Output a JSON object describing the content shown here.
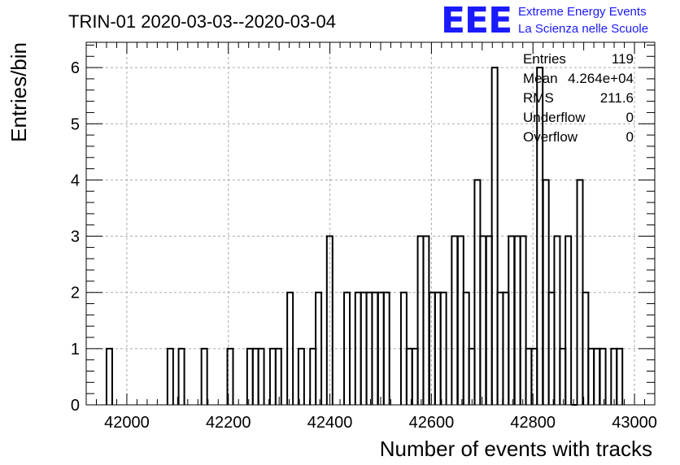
{
  "chart_data": {
    "type": "bar",
    "title": "TRIN-01 2020-03-03--2020-03-04",
    "xlabel": "Number of events with tracks",
    "ylabel": "Entries/bin",
    "xlim": [
      41920,
      43040
    ],
    "ylim": [
      0,
      6.45
    ],
    "grid": true,
    "bin_width": 11.2,
    "bins": [
      [
        41960,
        1
      ],
      [
        42080,
        1
      ],
      [
        42102,
        1
      ],
      [
        42147,
        1
      ],
      [
        42198,
        1
      ],
      [
        42237,
        1
      ],
      [
        42248,
        1
      ],
      [
        42259,
        1
      ],
      [
        42282,
        1
      ],
      [
        42293,
        1
      ],
      [
        42316,
        2
      ],
      [
        42338,
        1
      ],
      [
        42361,
        1
      ],
      [
        42372,
        2
      ],
      [
        42394,
        3
      ],
      [
        42428,
        2
      ],
      [
        42450,
        2
      ],
      [
        42461,
        2
      ],
      [
        42472,
        2
      ],
      [
        42483,
        2
      ],
      [
        42495,
        2
      ],
      [
        42506,
        2
      ],
      [
        42540,
        2
      ],
      [
        42551,
        1
      ],
      [
        42562,
        1
      ],
      [
        42573,
        3
      ],
      [
        42584,
        3
      ],
      [
        42596,
        2
      ],
      [
        42607,
        2
      ],
      [
        42618,
        2
      ],
      [
        42640,
        3
      ],
      [
        42652,
        3
      ],
      [
        42663,
        2
      ],
      [
        42674,
        1
      ],
      [
        42685,
        4
      ],
      [
        42696,
        3
      ],
      [
        42708,
        3
      ],
      [
        42719,
        6
      ],
      [
        42730,
        2
      ],
      [
        42741,
        2
      ],
      [
        42752,
        3
      ],
      [
        42764,
        3
      ],
      [
        42775,
        3
      ],
      [
        42786,
        1
      ],
      [
        42797,
        1
      ],
      [
        42808,
        6
      ],
      [
        42820,
        4
      ],
      [
        42831,
        2
      ],
      [
        42842,
        3
      ],
      [
        42853,
        1
      ],
      [
        42864,
        3
      ],
      [
        42876,
        0
      ],
      [
        42887,
        4
      ],
      [
        42898,
        2
      ],
      [
        42909,
        1
      ],
      [
        42920,
        1
      ],
      [
        42932,
        1
      ],
      [
        42954,
        1
      ],
      [
        42965,
        1
      ]
    ],
    "x_ticks": [
      "42000",
      "42200",
      "42400",
      "42600",
      "42800",
      "43000"
    ],
    "x_tick_values": [
      42000,
      42200,
      42400,
      42600,
      42800,
      43000
    ],
    "y_ticks": [
      "0",
      "1",
      "2",
      "3",
      "4",
      "5",
      "6"
    ],
    "y_tick_values": [
      0,
      1,
      2,
      3,
      4,
      5,
      6
    ],
    "stats": [
      {
        "label": "Entries",
        "value": "119"
      },
      {
        "label": "Mean",
        "value": "4.264e+04"
      },
      {
        "label": "RMS",
        "value": "211.6"
      },
      {
        "label": "Underflow",
        "value": "0"
      },
      {
        "label": "Overflow",
        "value": "0"
      }
    ]
  },
  "logo": {
    "mark": "EEE",
    "line1": "Extreme Energy Events",
    "line2": "La Scienza nelle Scuole",
    "color": "#1a1aff"
  }
}
